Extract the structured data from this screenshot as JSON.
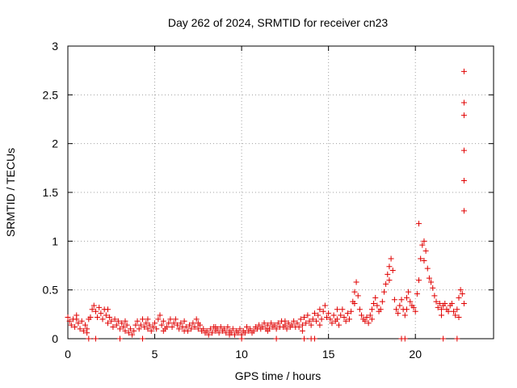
{
  "chart_data": {
    "type": "scatter",
    "title": "Day 262 of 2024, SRMTID for receiver cn23",
    "xlabel": "GPS time / hours",
    "ylabel": "SRMTID / TECUs",
    "xlim": [
      0,
      24.5
    ],
    "ylim": [
      0,
      3
    ],
    "grid": true,
    "marker": "+",
    "series_color": "#e00000",
    "x_ticks": [
      0,
      5,
      10,
      15,
      20
    ],
    "x_tick_labels": [
      "0",
      "5",
      "10",
      "15",
      "20"
    ],
    "y_ticks": [
      0,
      0.5,
      1,
      1.5,
      2,
      2.5,
      3
    ],
    "y_tick_labels": [
      "0",
      "0.5",
      "1",
      "1.5",
      "2",
      "2.5",
      "3"
    ],
    "series": [
      {
        "name": "SRMTID",
        "points": [
          [
            0.0,
            0.22
          ],
          [
            0.1,
            0.18
          ],
          [
            0.2,
            0.14
          ],
          [
            0.3,
            0.2
          ],
          [
            0.4,
            0.12
          ],
          [
            0.5,
            0.24
          ],
          [
            0.6,
            0.16
          ],
          [
            0.7,
            0.1
          ],
          [
            0.8,
            0.18
          ],
          [
            0.9,
            0.08
          ],
          [
            1.0,
            0.14
          ],
          [
            1.1,
            0.06
          ],
          [
            1.2,
            0.2
          ],
          [
            1.3,
            0.22
          ],
          [
            1.4,
            0.3
          ],
          [
            1.5,
            0.34
          ],
          [
            1.6,
            0.28
          ],
          [
            1.7,
            0.22
          ],
          [
            1.8,
            0.32
          ],
          [
            1.9,
            0.26
          ],
          [
            2.0,
            0.2
          ],
          [
            2.1,
            0.3
          ],
          [
            2.2,
            0.24
          ],
          [
            2.3,
            0.16
          ],
          [
            2.4,
            0.22
          ],
          [
            2.5,
            0.18
          ],
          [
            2.6,
            0.12
          ],
          [
            2.7,
            0.2
          ],
          [
            2.8,
            0.14
          ],
          [
            2.9,
            0.18
          ],
          [
            3.0,
            0.1
          ],
          [
            3.1,
            0.16
          ],
          [
            3.2,
            0.12
          ],
          [
            3.3,
            0.08
          ],
          [
            3.4,
            0.14
          ],
          [
            3.5,
            0.06
          ],
          [
            3.6,
            0.1
          ],
          [
            3.7,
            0.04
          ],
          [
            3.8,
            0.08
          ],
          [
            3.9,
            0.14
          ],
          [
            4.0,
            0.18
          ],
          [
            4.1,
            0.1
          ],
          [
            4.2,
            0.14
          ],
          [
            4.3,
            0.2
          ],
          [
            4.4,
            0.12
          ],
          [
            4.5,
            0.16
          ],
          [
            4.6,
            0.1
          ],
          [
            4.7,
            0.14
          ],
          [
            4.8,
            0.08
          ],
          [
            4.9,
            0.12
          ],
          [
            5.0,
            0.16
          ],
          [
            5.1,
            0.1
          ],
          [
            5.2,
            0.2
          ],
          [
            5.3,
            0.24
          ],
          [
            5.4,
            0.14
          ],
          [
            5.5,
            0.18
          ],
          [
            5.6,
            0.1
          ],
          [
            5.7,
            0.12
          ],
          [
            5.8,
            0.16
          ],
          [
            5.9,
            0.2
          ],
          [
            6.0,
            0.12
          ],
          [
            6.1,
            0.16
          ],
          [
            6.2,
            0.2
          ],
          [
            6.3,
            0.14
          ],
          [
            6.4,
            0.1
          ],
          [
            6.5,
            0.16
          ],
          [
            6.6,
            0.12
          ],
          [
            6.7,
            0.18
          ],
          [
            6.8,
            0.12
          ],
          [
            6.9,
            0.08
          ],
          [
            7.0,
            0.14
          ],
          [
            7.1,
            0.1
          ],
          [
            7.2,
            0.16
          ],
          [
            7.3,
            0.12
          ],
          [
            7.4,
            0.2
          ],
          [
            7.5,
            0.1
          ],
          [
            7.6,
            0.14
          ],
          [
            7.7,
            0.08
          ],
          [
            7.8,
            0.1
          ],
          [
            7.9,
            0.06
          ],
          [
            8.0,
            0.08
          ],
          [
            8.1,
            0.04
          ],
          [
            8.2,
            0.1
          ],
          [
            8.3,
            0.06
          ],
          [
            8.4,
            0.12
          ],
          [
            8.5,
            0.08
          ],
          [
            8.6,
            0.1
          ],
          [
            8.7,
            0.06
          ],
          [
            8.8,
            0.12
          ],
          [
            8.9,
            0.08
          ],
          [
            9.0,
            0.1
          ],
          [
            9.1,
            0.06
          ],
          [
            9.2,
            0.12
          ],
          [
            9.3,
            0.08
          ],
          [
            9.4,
            0.06
          ],
          [
            9.5,
            0.1
          ],
          [
            9.6,
            0.04
          ],
          [
            9.7,
            0.08
          ],
          [
            9.8,
            0.06
          ],
          [
            9.9,
            0.1
          ],
          [
            10.0,
            0.04
          ],
          [
            10.1,
            0.08
          ],
          [
            10.2,
            0.06
          ],
          [
            10.3,
            0.12
          ],
          [
            10.4,
            0.08
          ],
          [
            10.5,
            0.1
          ],
          [
            10.6,
            0.06
          ],
          [
            10.7,
            0.08
          ],
          [
            10.8,
            0.12
          ],
          [
            10.9,
            0.1
          ],
          [
            11.0,
            0.14
          ],
          [
            11.1,
            0.1
          ],
          [
            11.2,
            0.12
          ],
          [
            11.3,
            0.16
          ],
          [
            11.4,
            0.1
          ],
          [
            11.5,
            0.14
          ],
          [
            11.6,
            0.1
          ],
          [
            11.7,
            0.16
          ],
          [
            11.8,
            0.12
          ],
          [
            11.9,
            0.14
          ],
          [
            12.0,
            0.1
          ],
          [
            12.1,
            0.16
          ],
          [
            12.2,
            0.12
          ],
          [
            12.3,
            0.18
          ],
          [
            12.4,
            0.12
          ],
          [
            12.5,
            0.14
          ],
          [
            12.6,
            0.1
          ],
          [
            12.7,
            0.16
          ],
          [
            12.8,
            0.12
          ],
          [
            12.9,
            0.14
          ],
          [
            13.0,
            0.18
          ],
          [
            13.1,
            0.12
          ],
          [
            13.2,
            0.16
          ],
          [
            13.3,
            0.12
          ],
          [
            13.4,
            0.2
          ],
          [
            13.5,
            0.14
          ],
          [
            13.6,
            0.22
          ],
          [
            13.7,
            0.16
          ],
          [
            13.8,
            0.24
          ],
          [
            13.9,
            0.18
          ],
          [
            14.0,
            0.14
          ],
          [
            14.1,
            0.2
          ],
          [
            14.2,
            0.26
          ],
          [
            14.3,
            0.18
          ],
          [
            14.4,
            0.24
          ],
          [
            14.5,
            0.14
          ],
          [
            14.6,
            0.2
          ],
          [
            14.7,
            0.28
          ],
          [
            14.8,
            0.34
          ],
          [
            14.9,
            0.22
          ],
          [
            15.0,
            0.26
          ],
          [
            15.1,
            0.2
          ],
          [
            15.2,
            0.16
          ],
          [
            15.3,
            0.24
          ],
          [
            15.4,
            0.18
          ],
          [
            15.5,
            0.2
          ],
          [
            15.6,
            0.14
          ],
          [
            15.7,
            0.24
          ],
          [
            15.8,
            0.3
          ],
          [
            15.9,
            0.22
          ],
          [
            16.0,
            0.18
          ],
          [
            16.1,
            0.26
          ],
          [
            16.2,
            0.2
          ],
          [
            16.3,
            0.28
          ],
          [
            16.4,
            0.38
          ],
          [
            16.5,
            0.48
          ],
          [
            16.6,
            0.58
          ],
          [
            16.7,
            0.44
          ],
          [
            16.8,
            0.3
          ],
          [
            16.9,
            0.24
          ],
          [
            17.0,
            0.2
          ],
          [
            17.1,
            0.18
          ],
          [
            17.2,
            0.22
          ],
          [
            17.3,
            0.16
          ],
          [
            17.4,
            0.24
          ],
          [
            17.5,
            0.3
          ],
          [
            17.6,
            0.36
          ],
          [
            17.7,
            0.42
          ],
          [
            17.8,
            0.34
          ],
          [
            17.9,
            0.28
          ],
          [
            18.0,
            0.3
          ],
          [
            18.1,
            0.38
          ],
          [
            18.2,
            0.48
          ],
          [
            18.3,
            0.56
          ],
          [
            18.4,
            0.66
          ],
          [
            18.5,
            0.74
          ],
          [
            18.6,
            0.82
          ],
          [
            18.7,
            0.7
          ],
          [
            18.8,
            0.4
          ],
          [
            18.9,
            0.3
          ],
          [
            19.0,
            0.26
          ],
          [
            19.1,
            0.34
          ],
          [
            19.2,
            0.4
          ],
          [
            19.3,
            0.3
          ],
          [
            19.4,
            0.24
          ],
          [
            19.5,
            0.42
          ],
          [
            19.6,
            0.48
          ],
          [
            19.7,
            0.38
          ],
          [
            19.8,
            0.34
          ],
          [
            19.9,
            0.32
          ],
          [
            20.0,
            0.28
          ],
          [
            20.1,
            0.46
          ],
          [
            20.2,
            0.6
          ],
          [
            20.3,
            0.82
          ],
          [
            20.4,
            0.96
          ],
          [
            20.5,
            1.0
          ],
          [
            20.6,
            0.9
          ],
          [
            20.7,
            0.72
          ],
          [
            20.8,
            0.62
          ],
          [
            20.9,
            0.58
          ],
          [
            21.0,
            0.52
          ],
          [
            21.1,
            0.44
          ],
          [
            21.2,
            0.38
          ],
          [
            21.3,
            0.32
          ],
          [
            21.4,
            0.36
          ],
          [
            21.5,
            0.3
          ],
          [
            21.6,
            0.34
          ],
          [
            21.7,
            0.36
          ],
          [
            21.8,
            0.3
          ],
          [
            21.9,
            0.28
          ],
          [
            22.0,
            0.34
          ],
          [
            22.1,
            0.36
          ],
          [
            22.2,
            0.28
          ],
          [
            22.3,
            0.24
          ],
          [
            22.4,
            0.3
          ],
          [
            22.5,
            0.42
          ],
          [
            22.6,
            0.5
          ],
          [
            22.7,
            0.46
          ],
          [
            22.8,
            0.36
          ],
          [
            0.5,
            0.2
          ],
          [
            1.1,
            0.1
          ],
          [
            2.3,
            0.3
          ],
          [
            3.3,
            0.18
          ],
          [
            4.6,
            0.2
          ],
          [
            5.5,
            0.08
          ],
          [
            6.7,
            0.08
          ],
          [
            7.5,
            0.16
          ],
          [
            8.5,
            0.12
          ],
          [
            9.3,
            0.04
          ],
          [
            11.5,
            0.08
          ],
          [
            12.5,
            0.18
          ],
          [
            13.5,
            0.08
          ],
          [
            14.5,
            0.3
          ],
          [
            15.5,
            0.3
          ],
          [
            16.5,
            0.36
          ],
          [
            17.5,
            0.2
          ],
          [
            18.5,
            0.6
          ],
          [
            19.5,
            0.3
          ],
          [
            20.5,
            0.8
          ],
          [
            21.5,
            0.24
          ],
          [
            22.5,
            0.22
          ],
          [
            20.2,
            1.18
          ],
          [
            22.8,
            2.74
          ],
          [
            22.8,
            2.42
          ],
          [
            22.8,
            2.29
          ],
          [
            22.8,
            1.93
          ],
          [
            22.8,
            1.62
          ],
          [
            22.8,
            1.31
          ],
          [
            1.2,
            0.0
          ],
          [
            1.6,
            0.0
          ],
          [
            3.0,
            0.0
          ],
          [
            4.3,
            0.0
          ],
          [
            10.0,
            0.0
          ],
          [
            12.0,
            0.0
          ],
          [
            13.6,
            0.0
          ],
          [
            14.0,
            0.0
          ],
          [
            14.2,
            0.0
          ],
          [
            19.2,
            0.0
          ],
          [
            19.4,
            0.0
          ],
          [
            21.6,
            0.0
          ],
          [
            22.4,
            0.0
          ]
        ]
      }
    ]
  }
}
